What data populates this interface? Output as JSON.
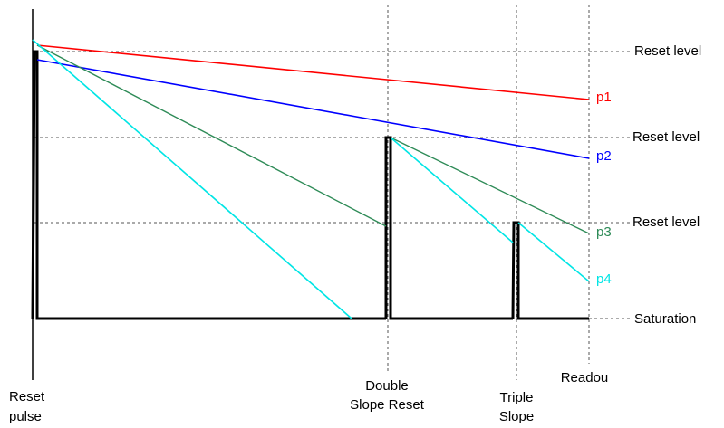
{
  "diagram": {
    "level_labels": {
      "reset_level_1": "Reset level",
      "reset_level_2": "Reset level",
      "reset_level_3": "Reset level",
      "saturation": "Saturation"
    },
    "pixel_labels": {
      "p1": "p1",
      "p2": "p2",
      "p3": "p3",
      "p4": "p4"
    },
    "time_labels": {
      "reset_pulse_line1": "Reset",
      "reset_pulse_line2": "pulse",
      "double_slope_line1": "Double",
      "double_slope_line2": "Slope Reset",
      "triple_slope_line1": "Triple",
      "triple_slope_line2": "Slope",
      "readout": "Readou"
    },
    "colors": {
      "p1": "#ff0000",
      "p2": "#0000ff",
      "p3": "#2e8b57",
      "p4": "#00e5e5",
      "pulse": "#000000",
      "guide": "#555555"
    }
  }
}
